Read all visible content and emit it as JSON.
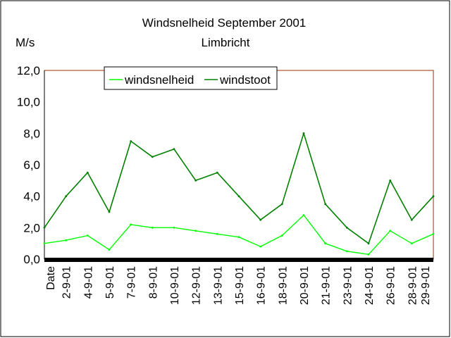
{
  "chart_data": {
    "type": "line",
    "title": "Windsnelheid September 2001",
    "subtitle": "Limbricht",
    "ylabel": "M/s",
    "ylim": [
      0,
      12
    ],
    "yticks": [
      "0,0",
      "2,0",
      "4,0",
      "6,0",
      "8,0",
      "10,0",
      "12,0"
    ],
    "grid": false,
    "legend_position": "top",
    "x": [
      "Date",
      "2-9-01",
      "4-9-01",
      "5-9-01",
      "7-9-01",
      "8-9-01",
      "10-9-01",
      "12-9-01",
      "13-9-01",
      "15-9-01",
      "16-9-01",
      "18-9-01",
      "20-9-01",
      "21-9-01",
      "23-9-01",
      "24-9-01",
      "26-9-01",
      "28-9-01",
      "29-9-01"
    ],
    "series": [
      {
        "name": "windsnelheid",
        "color": "#00ff00",
        "values": [
          1.0,
          1.2,
          1.5,
          0.6,
          2.2,
          2.0,
          2.0,
          1.8,
          1.6,
          1.4,
          0.8,
          1.5,
          2.8,
          1.0,
          0.5,
          0.3,
          1.8,
          1.0,
          1.6
        ]
      },
      {
        "name": "windstoot",
        "color": "#008000",
        "values": [
          2.0,
          4.0,
          5.5,
          3.0,
          7.5,
          6.5,
          7.0,
          5.0,
          5.5,
          4.0,
          2.5,
          3.5,
          8.0,
          3.5,
          2.0,
          1.0,
          5.0,
          2.5,
          4.0
        ]
      }
    ]
  }
}
